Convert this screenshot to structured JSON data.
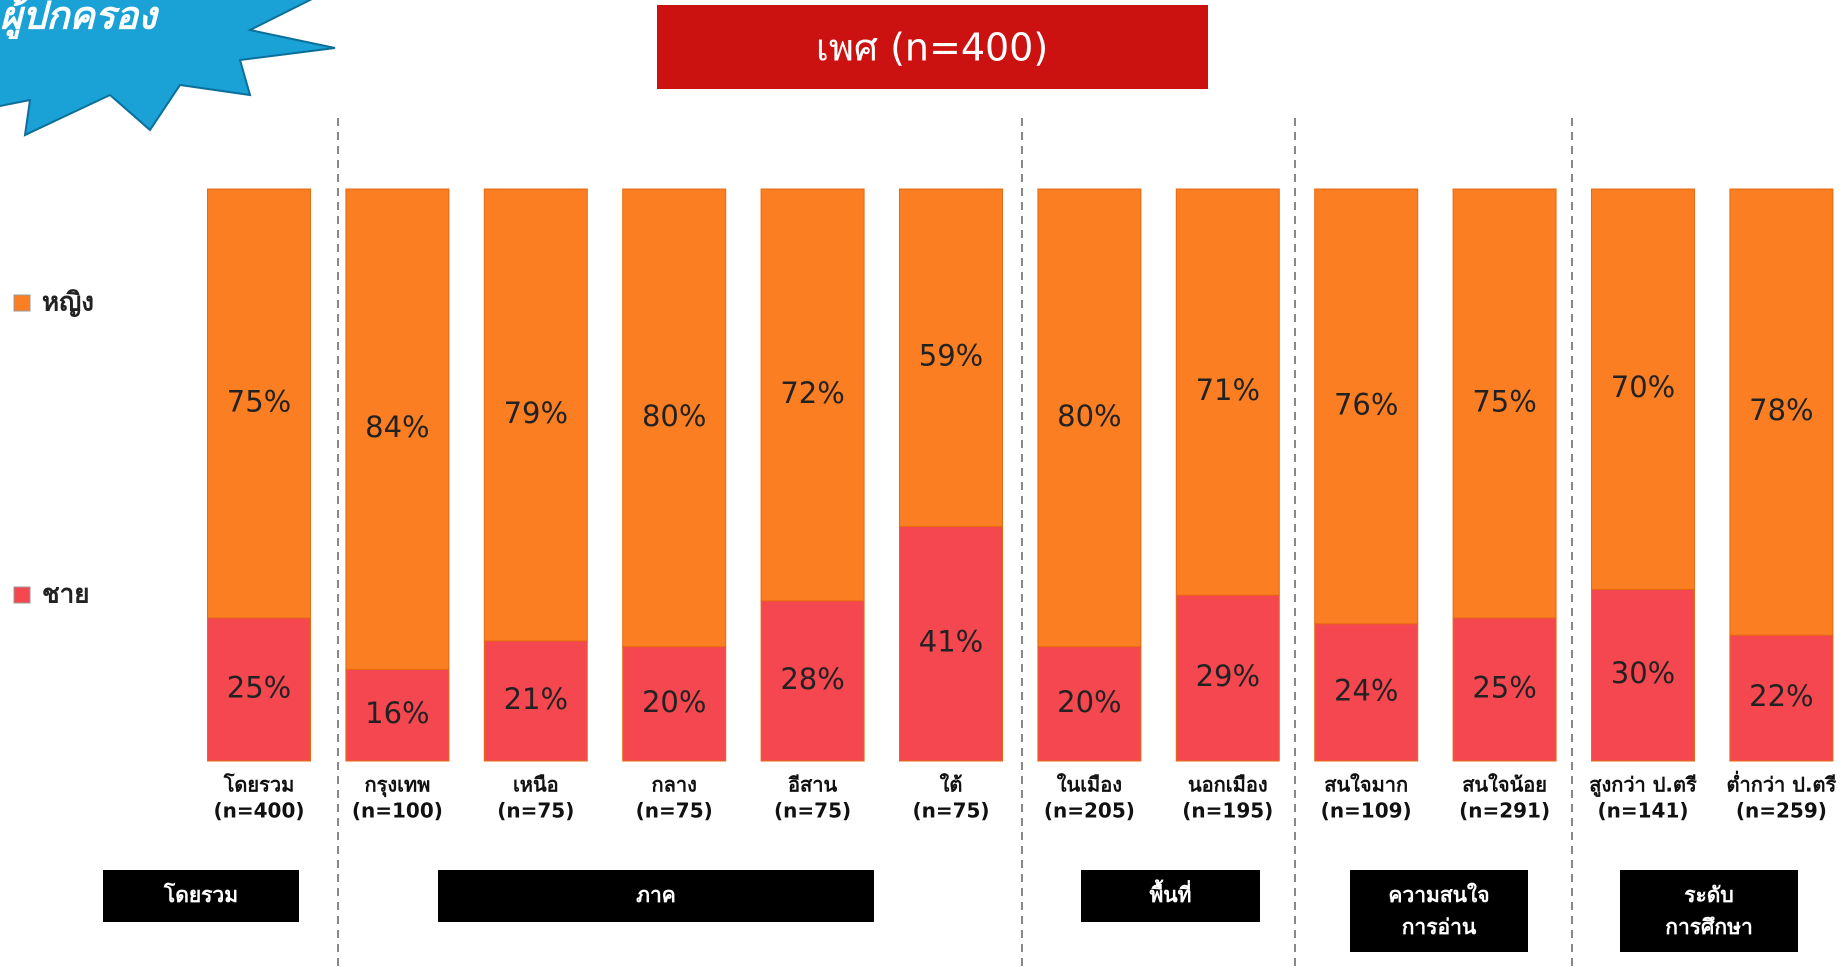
{
  "badge": "ผู้ปกครอง",
  "chart_data": {
    "type": "stacked_bar_100",
    "title": "เพศ (n=400)",
    "categories": [
      "โดยรวม",
      "กรุงเทพ",
      "เหนือ",
      "กลาง",
      "อีสาน",
      "ใต้",
      "ในเมือง",
      "นอกเมือง",
      "สนใจมาก",
      "สนใจน้อย",
      "สูงกว่า ป.ตรี",
      "ต่ำกว่า ป.ตรี"
    ],
    "category_n": [
      "(n=400)",
      "(n=100)",
      "(n=75)",
      "(n=75)",
      "(n=75)",
      "(n=75)",
      "(n=205)",
      "(n=195)",
      "(n=109)",
      "(n=291)",
      "(n=141)",
      "(n=259)"
    ],
    "series": [
      {
        "name": "ชาย",
        "color": "#f5474f",
        "values": [
          25,
          16,
          21,
          20,
          28,
          41,
          20,
          29,
          24,
          25,
          30,
          22
        ],
        "value_labels": [
          "25%",
          "16%",
          "21%",
          "20%",
          "28%",
          "41%",
          "20%",
          "29%",
          "24%",
          "25%",
          "30%",
          "22%"
        ]
      },
      {
        "name": "หญิง",
        "color": "#fb7f22",
        "values": [
          75,
          84,
          79,
          80,
          72,
          59,
          80,
          71,
          76,
          75,
          70,
          78
        ],
        "value_labels": [
          "75%",
          "84%",
          "79%",
          "80%",
          "72%",
          "59%",
          "80%",
          "71%",
          "76%",
          "75%",
          "70%",
          "78%"
        ]
      }
    ],
    "groups": [
      [
        "โดยรวม"
      ],
      [
        "ภาค"
      ],
      [
        "พื้นที่"
      ],
      [
        "ความสนใจ",
        "การอ่าน"
      ],
      [
        "ระดับ",
        "การศึกษา"
      ]
    ]
  }
}
